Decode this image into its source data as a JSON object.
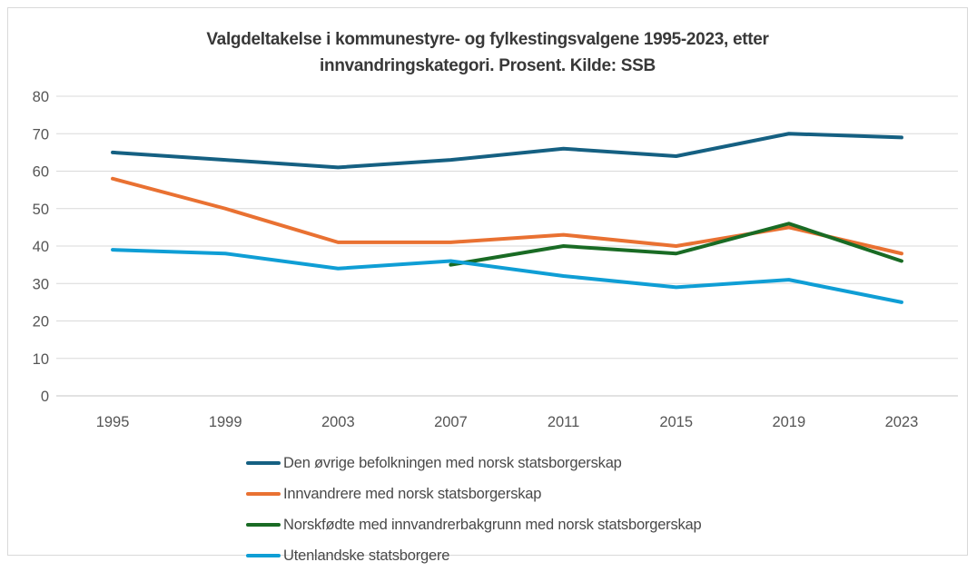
{
  "title": {
    "line1": "Valgdeltakelse i kommunestyre- og fylkestingsvalgene 1995-2023, etter",
    "line2": "innvandringskategori. Prosent. Kilde: SSB"
  },
  "chart_data": {
    "type": "line",
    "categories": [
      "1995",
      "1999",
      "2003",
      "2007",
      "2011",
      "2015",
      "2019",
      "2023"
    ],
    "series": [
      {
        "name": "Den øvrige befolkningen med norsk statsborgerskap",
        "color": "#156082",
        "values": [
          65,
          63,
          61,
          63,
          66,
          64,
          70,
          69
        ]
      },
      {
        "name": "Innvandrere med norsk statsborgerskap",
        "color": "#E97132",
        "values": [
          58,
          50,
          41,
          41,
          43,
          40,
          45,
          38
        ]
      },
      {
        "name": "Norskfødte med innvandrerbakgrunn med norsk statsborgerskap",
        "color": "#196B24",
        "values": [
          null,
          null,
          null,
          35,
          40,
          38,
          46,
          36
        ]
      },
      {
        "name": "Utenlandske statsborgere",
        "color": "#0F9ED5",
        "values": [
          39,
          38,
          34,
          36,
          32,
          29,
          31,
          25
        ]
      }
    ],
    "title": "Valgdeltakelse i kommunestyre- og fylkestingsvalgene 1995-2023, etter innvandringskategori. Prosent. Kilde: SSB",
    "xlabel": "",
    "ylabel": "",
    "ylim": [
      0,
      80
    ],
    "yticks": [
      0,
      10,
      20,
      30,
      40,
      50,
      60,
      70,
      80
    ],
    "grid": true,
    "legend_position": "bottom-left"
  },
  "colors": {
    "background": "#FFFFFF",
    "chart_border": "#D9D9D9",
    "gridline": "#D9D9D9",
    "axis_line": "#C6C6C6",
    "tick_label": "#555555",
    "title_text": "#383838",
    "legend_text": "#494949"
  }
}
